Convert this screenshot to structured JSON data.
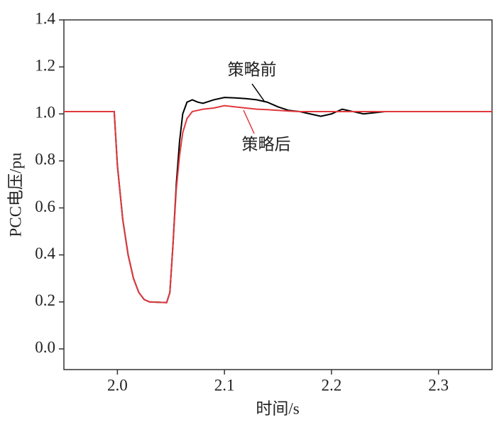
{
  "chart_data": {
    "type": "line",
    "x_label": "时间/s",
    "y_label": "PCC电压/pu",
    "x": [
      1.95,
      1.96,
      1.97,
      1.98,
      1.99,
      1.997,
      2.0,
      2.005,
      2.01,
      2.015,
      2.02,
      2.025,
      2.03,
      2.04,
      2.046,
      2.049,
      2.052,
      2.055,
      2.058,
      2.061,
      2.065,
      2.07,
      2.075,
      2.08,
      2.09,
      2.1,
      2.11,
      2.12,
      2.13,
      2.14,
      2.15,
      2.16,
      2.17,
      2.18,
      2.19,
      2.2,
      2.21,
      2.22,
      2.23,
      2.25,
      2.3,
      2.35
    ],
    "series": [
      {
        "name": "策略前",
        "color": "#000000",
        "values": [
          1.01,
          1.01,
          1.01,
          1.01,
          1.01,
          1.01,
          0.78,
          0.55,
          0.4,
          0.3,
          0.24,
          0.21,
          0.2,
          0.198,
          0.197,
          0.24,
          0.45,
          0.7,
          0.88,
          1.0,
          1.05,
          1.06,
          1.05,
          1.045,
          1.06,
          1.07,
          1.068,
          1.065,
          1.06,
          1.05,
          1.03,
          1.015,
          1.01,
          1.0,
          0.99,
          1.0,
          1.02,
          1.01,
          1.0,
          1.01,
          1.01,
          1.01
        ]
      },
      {
        "name": "策略后",
        "color": "#e0393e",
        "values": [
          1.01,
          1.01,
          1.01,
          1.01,
          1.01,
          1.01,
          0.78,
          0.55,
          0.4,
          0.3,
          0.24,
          0.21,
          0.2,
          0.198,
          0.197,
          0.24,
          0.45,
          0.68,
          0.82,
          0.92,
          0.98,
          1.01,
          1.015,
          1.02,
          1.025,
          1.035,
          1.03,
          1.025,
          1.02,
          1.018,
          1.015,
          1.012,
          1.01,
          1.01,
          1.01,
          1.01,
          1.01,
          1.01,
          1.01,
          1.01,
          1.01,
          1.01
        ]
      }
    ],
    "xlim": [
      1.95,
      2.35
    ],
    "xticks": [
      {
        "value": 2.0,
        "label": "2.0"
      },
      2.1,
      2.2,
      2.3
    ],
    "ylim": [
      -0.088,
      1.4
    ],
    "yticks": [
      {
        "value": 0,
        "label": "0.0"
      },
      0.2,
      0.4,
      0.6,
      0.8,
      {
        "value": 1,
        "label": "1.0"
      },
      1.2,
      1.4
    ]
  }
}
